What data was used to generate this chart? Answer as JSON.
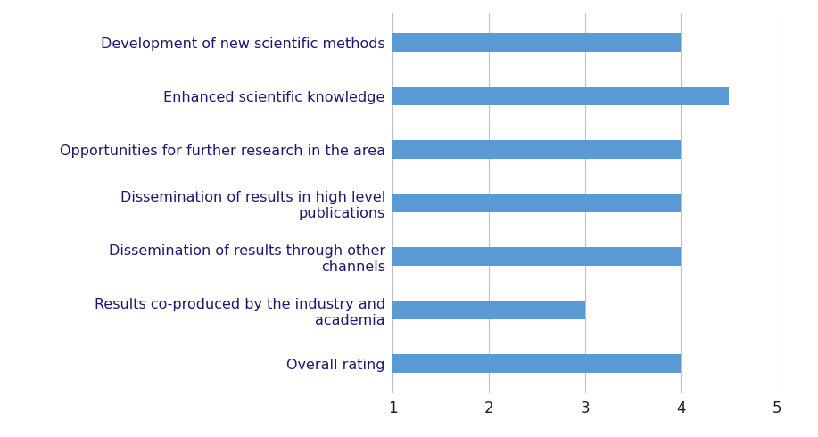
{
  "categories": [
    "Overall rating",
    "Results co-produced by the industry and\nacademia",
    "Dissemination of results through other\nchannels",
    "Dissemination of results in high level\npublications",
    "Opportunities for further research in the area",
    "Enhanced scientific knowledge",
    "Development of new scientific methods"
  ],
  "values": [
    4,
    3,
    4,
    4,
    4,
    4.5,
    4
  ],
  "bar_color": "#5b9bd5",
  "xlim": [
    1,
    5
  ],
  "xticks": [
    1,
    2,
    3,
    4,
    5
  ],
  "background_color": "#ffffff",
  "grid_color": "#bfbfbf",
  "label_fontsize": 11.5,
  "tick_fontsize": 12,
  "bar_height": 0.35
}
